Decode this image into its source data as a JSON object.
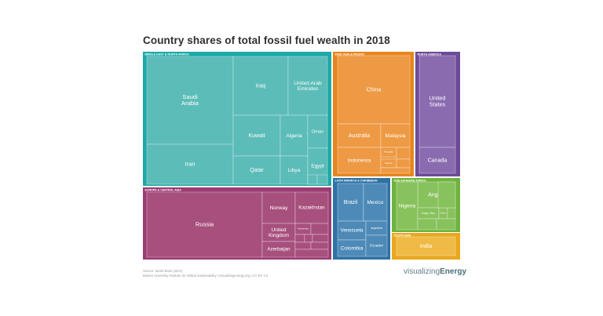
{
  "chart_data": {
    "type": "treemap",
    "title": "Country shares of total fossil fuel wealth in 2018",
    "regions": [
      {
        "name": "MIDDLE EAST & NORTH AFRICA",
        "color": "#1fa8a8",
        "fill": "#5bbcb8",
        "items": [
          {
            "label": "Saudi Arabia",
            "value": 110
          },
          {
            "label": "Iran",
            "value": 73
          },
          {
            "label": "Iraq",
            "value": 36
          },
          {
            "label": "United Arab Emirates",
            "value": 34
          },
          {
            "label": "Kuwait",
            "value": 24
          },
          {
            "label": "Qatar",
            "value": 17
          },
          {
            "label": "Algeria",
            "value": 13
          },
          {
            "label": "Libya",
            "value": 12
          },
          {
            "label": "Oman",
            "value": 7
          },
          {
            "label": "Egypt",
            "value": 9
          }
        ]
      },
      {
        "name": "EUROPE & CENTRAL ASIA",
        "color": "#9b3d73",
        "fill": "#a8507d",
        "items": [
          {
            "label": "Russia",
            "value": 78
          },
          {
            "label": "Norway",
            "value": 12
          },
          {
            "label": "Kazakhstan",
            "value": 10
          },
          {
            "label": "United Kingdom",
            "value": 10
          },
          {
            "label": "Azerbaijan",
            "value": 6
          },
          {
            "label": "Turkmenistan",
            "value": 4
          }
        ]
      },
      {
        "name": "EAST ASIA & PACIFIC",
        "color": "#e8861e",
        "fill": "#ee9a45",
        "items": [
          {
            "label": "China",
            "value": 53
          },
          {
            "label": "Australia",
            "value": 13
          },
          {
            "label": "Malaysia",
            "value": 9
          },
          {
            "label": "Indonesia",
            "value": 10
          },
          {
            "label": "Mongolia",
            "value": 2
          },
          {
            "label": "Vietnam",
            "value": 2
          }
        ]
      },
      {
        "name": "NORTH AMERICA",
        "color": "#6c4b97",
        "fill": "#8a6bb0",
        "items": [
          {
            "label": "United States",
            "value": 52
          },
          {
            "label": "Canada",
            "value": 20
          }
        ]
      },
      {
        "name": "LATIN AMERICA & CARIBBEAN",
        "color": "#2f73a6",
        "fill": "#4d8ab8",
        "items": [
          {
            "label": "Brazil",
            "value": 14
          },
          {
            "label": "Mexico",
            "value": 11
          },
          {
            "label": "Venezuela",
            "value": 9
          },
          {
            "label": "Argentina",
            "value": 4
          },
          {
            "label": "Colombia",
            "value": 8
          },
          {
            "label": "Ecuador",
            "value": 3
          }
        ]
      },
      {
        "name": "SUB-SAHARAN AFRICA",
        "color": "#6eb33f",
        "fill": "#88c25d",
        "items": [
          {
            "label": "Angola",
            "value": 9
          },
          {
            "label": "Nigeria",
            "value": 12
          },
          {
            "label": "Congo, Rep.",
            "value": 2
          },
          {
            "label": "Gabon",
            "value": 1
          }
        ]
      },
      {
        "name": "SOUTH ASIA",
        "color": "#e9a81e",
        "fill": "#f0bb45",
        "items": [
          {
            "label": "India",
            "value": 12
          }
        ]
      }
    ]
  },
  "footer": {
    "source": "Source: World Bank (2021)",
    "credit": "Boston University Institute for Global Sustainability | visualizingenergy.org | CC-BY 4.0",
    "brand_light": "visualizing",
    "brand_bold": "Energy"
  }
}
